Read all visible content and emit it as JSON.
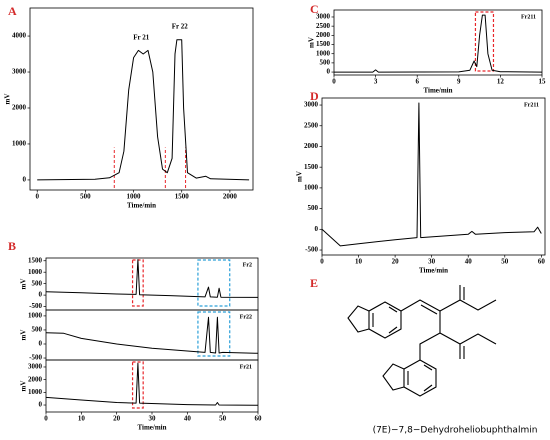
{
  "chart_data": [
    {
      "type": "line",
      "panel": "A",
      "xlabel": "Time/min",
      "ylabel": "mV",
      "annotations": [
        "Fr 21",
        "Fr 22"
      ],
      "x": [
        0,
        600,
        750,
        850,
        900,
        950,
        1000,
        1050,
        1100,
        1150,
        1200,
        1250,
        1300,
        1350,
        1400,
        1430,
        1450,
        1500,
        1520,
        1560,
        1650,
        1750,
        1800,
        2200
      ],
      "values": [
        0,
        20,
        60,
        200,
        800,
        2500,
        3400,
        3600,
        3500,
        3600,
        3000,
        1200,
        300,
        200,
        600,
        3500,
        3900,
        3900,
        2000,
        200,
        50,
        100,
        30,
        0
      ],
      "color": "#000000",
      "xlim": [
        -75,
        2240
      ],
      "ylim": [
        -280,
        4780
      ],
      "xticks": [
        0,
        500,
        1000,
        1500,
        2000
      ],
      "yticks": [
        0,
        1000,
        2000,
        3000,
        4000
      ],
      "cuts": [
        800,
        1330,
        1540
      ],
      "cut_color": "#e8262a"
    },
    {
      "type": "line",
      "panel": "B",
      "ylabel": "mV",
      "label": "Fr2",
      "x": [
        0,
        10,
        20,
        25.5,
        26,
        26.5,
        35,
        45,
        46,
        46.5,
        48.5,
        49,
        49.5,
        60
      ],
      "values": [
        150,
        100,
        50,
        30,
        1550,
        20,
        -20,
        -80,
        350,
        -80,
        -90,
        300,
        -90,
        -100
      ],
      "color": "#000000",
      "xlim": [
        0,
        60
      ],
      "ylim": [
        -650,
        1620
      ],
      "yticks": [
        -500,
        0,
        500,
        1000,
        1500
      ],
      "highlights": [
        {
          "x": [
            24.5,
            27.5
          ],
          "color": "#e8262a"
        },
        {
          "x": [
            43,
            52
          ],
          "color": "#2a9fd8"
        }
      ]
    },
    {
      "type": "line",
      "ylabel": "mV",
      "label": "Fr22",
      "x": [
        0,
        5,
        10,
        20,
        30,
        40,
        45,
        46,
        46.5,
        48,
        48.5,
        49,
        50,
        60
      ],
      "values": [
        400,
        380,
        200,
        0,
        -150,
        -250,
        -300,
        950,
        -300,
        -320,
        950,
        -320,
        -300,
        -330
      ],
      "color": "#000000",
      "xlim": [
        0,
        60
      ],
      "ylim": [
        -570,
        1210
      ],
      "yticks": [
        -500,
        0,
        500,
        1000
      ],
      "highlights": [
        {
          "x": [
            43,
            52
          ],
          "color": "#2a9fd8"
        }
      ]
    },
    {
      "type": "line",
      "xlabel": "Time/min",
      "ylabel": "mV",
      "label": "Fr21",
      "x": [
        0,
        10,
        20,
        25.5,
        26,
        26.5,
        40,
        48,
        48.5,
        49,
        60
      ],
      "values": [
        600,
        400,
        200,
        150,
        3300,
        150,
        30,
        0,
        200,
        0,
        -20
      ],
      "color": "#000000",
      "xlim": [
        0,
        60
      ],
      "ylim": [
        -550,
        3550
      ],
      "xticks": [
        0,
        10,
        20,
        30,
        40,
        50,
        60
      ],
      "yticks": [
        0,
        1000,
        2000,
        3000
      ],
      "highlights": [
        {
          "x": [
            24.5,
            27.5
          ],
          "color": "#e8262a"
        }
      ]
    },
    {
      "type": "line",
      "panel": "C",
      "xlabel": "Time/min",
      "ylabel": "mV",
      "label": "Fr211",
      "x": [
        0,
        2.8,
        3,
        3.2,
        9,
        9.8,
        10.1,
        10.3,
        10.5,
        10.7,
        10.9,
        11.1,
        11.4,
        12,
        15
      ],
      "values": [
        0,
        0,
        120,
        0,
        10,
        100,
        600,
        300,
        2000,
        3100,
        3100,
        1000,
        100,
        20,
        0
      ],
      "color": "#000000",
      "xlim": [
        0,
        15
      ],
      "ylim": [
        -160,
        3380
      ],
      "xticks": [
        0,
        3,
        6,
        9,
        12,
        15
      ],
      "yticks": [
        0,
        500,
        1000,
        1500,
        2000,
        2500,
        3000
      ],
      "highlights": [
        {
          "x": [
            10.2,
            11.5
          ],
          "color": "#e8262a"
        }
      ]
    },
    {
      "type": "line",
      "panel": "D",
      "xlabel": "Time/min",
      "ylabel": "mV",
      "label": "Fr211",
      "x": [
        0,
        5,
        10,
        20,
        26,
        26.5,
        27,
        40,
        41,
        42,
        50,
        58,
        59,
        60
      ],
      "values": [
        0,
        -400,
        -350,
        -250,
        -200,
        3050,
        -200,
        -120,
        -50,
        -120,
        -80,
        -60,
        50,
        -100
      ],
      "color": "#000000",
      "xlim": [
        0,
        61
      ],
      "ylim": [
        -620,
        3170
      ],
      "xticks": [
        0,
        10,
        20,
        30,
        40,
        50,
        60
      ],
      "yticks": [
        -500,
        0,
        500,
        1000,
        1500,
        2000,
        2500,
        3000
      ]
    }
  ],
  "structure": {
    "panel": "E",
    "name": "(7E)−7,8−Dehydroheliobuphthalmin"
  }
}
